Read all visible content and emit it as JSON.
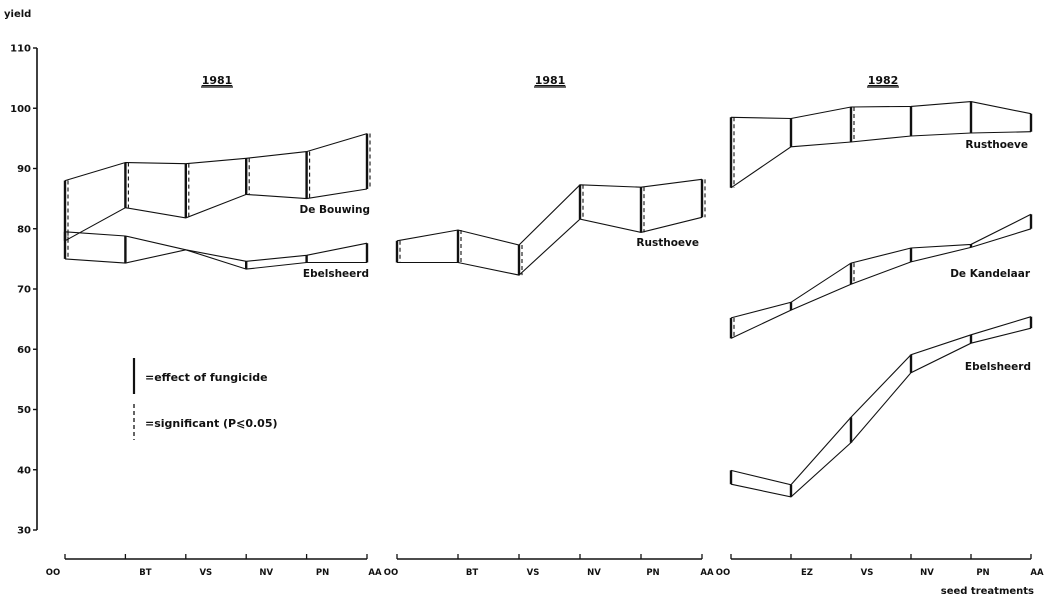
{
  "chart_data": {
    "type": "line",
    "ylabel": "yield",
    "xlabel": "seed treatments",
    "ylim": [
      30,
      110
    ],
    "yticks": [
      30,
      40,
      50,
      60,
      70,
      80,
      90,
      100,
      110
    ],
    "grid": false,
    "legend": {
      "solid": "=effect of fungicide",
      "dashed": "=significant (P⩽0.05)"
    },
    "panels": [
      {
        "year": "1981",
        "categories": [
          "OO",
          "BT",
          "VS",
          "NV",
          "PN",
          "AA"
        ],
        "series": [
          {
            "name": "De Bouwing",
            "upper": [
              88,
              91,
              90.8,
              91.7,
              92.8,
              95.8
            ],
            "lower": [
              78,
              83.5,
              81.8,
              85.7,
              85,
              86.6
            ],
            "significant": [
              true,
              true,
              true,
              true,
              true,
              true
            ]
          },
          {
            "name": "Ebelsheerd",
            "upper": [
              79.5,
              78.8,
              76.5,
              74.6,
              75.6,
              77.6
            ],
            "lower": [
              75,
              74.3,
              76.5,
              73.3,
              74.4,
              74.4
            ],
            "significant": [
              true,
              false,
              false,
              false,
              false,
              false
            ]
          }
        ]
      },
      {
        "year": "1981",
        "categories": [
          "OO",
          "BT",
          "VS",
          "NV",
          "PN",
          "AA"
        ],
        "series": [
          {
            "name": "Rusthoeve",
            "upper": [
              78,
              79.8,
              77.3,
              87.3,
              86.9,
              88.2
            ],
            "lower": [
              74.4,
              74.4,
              72.3,
              81.6,
              79.4,
              81.9
            ],
            "significant": [
              true,
              true,
              true,
              true,
              true,
              true
            ]
          }
        ]
      },
      {
        "year": "1982",
        "categories": [
          "OO",
          "EZ",
          "VS",
          "NV",
          "PN",
          "AA"
        ],
        "series": [
          {
            "name": "Rusthoeve",
            "upper": [
              98.5,
              98.3,
              100.2,
              100.3,
              101.1,
              99.1
            ],
            "lower": [
              86.8,
              93.6,
              94.4,
              95.4,
              95.9,
              96.1
            ],
            "significant": [
              true,
              false,
              true,
              false,
              false,
              false
            ]
          },
          {
            "name": "De Kandelaar",
            "upper": [
              65.2,
              67.8,
              74.3,
              76.8,
              77.4,
              82.4
            ],
            "lower": [
              61.8,
              66.5,
              70.8,
              74.5,
              76.9,
              80
            ],
            "significant": [
              true,
              false,
              true,
              false,
              false,
              false
            ]
          },
          {
            "name": "Ebelsheerd",
            "upper": [
              39.9,
              37.5,
              48.7,
              59.1,
              62.4,
              65.4
            ],
            "lower": [
              37.6,
              35.5,
              44.5,
              56.1,
              61,
              63.5
            ],
            "significant": [
              false,
              false,
              false,
              false,
              false,
              false
            ]
          }
        ]
      }
    ]
  }
}
